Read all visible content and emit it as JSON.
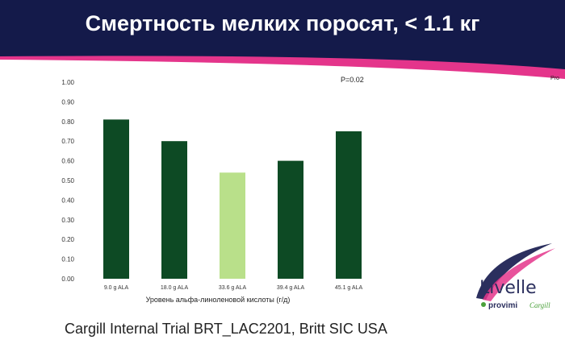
{
  "slide": {
    "title": "Смертность мелких поросят, < 1.1 кг",
    "footer": "Cargill Internal Trial BRT_LAC2201, Britt SIC USA",
    "edge_label": "Pro",
    "colors": {
      "navy": "#141a4a",
      "pink": "#e4358b",
      "dark_bar": "#0d4a24",
      "light_bar": "#b9e08a"
    }
  },
  "logo": {
    "brand": "Livelle",
    "sub_left": "provimi",
    "sub_right": "Cargill",
    "colors": {
      "text": "#2b2f5e",
      "swoosh": "#e4358b",
      "green": "#4aa03a"
    }
  },
  "chart_data": {
    "type": "bar",
    "categories": [
      "9.0 g ALA",
      "18.0 g ALA",
      "33.6 g ALA",
      "39.4 g ALA",
      "45.1 g ALA"
    ],
    "values": [
      0.81,
      0.7,
      0.54,
      0.6,
      0.75
    ],
    "bar_colors": [
      "#0d4a24",
      "#0d4a24",
      "#b9e08a",
      "#0d4a24",
      "#0d4a24"
    ],
    "yticks": [
      "0.00",
      "0.10",
      "0.20",
      "0.30",
      "0.40",
      "0.50",
      "0.60",
      "0.70",
      "0.80",
      "0.90",
      "1.00"
    ],
    "ylim": [
      0,
      1
    ],
    "xlabel": "Уровень альфа-линоленовой кислоты (г/д)",
    "ylabel": "",
    "annotation": "P=0.02",
    "grid": false
  }
}
